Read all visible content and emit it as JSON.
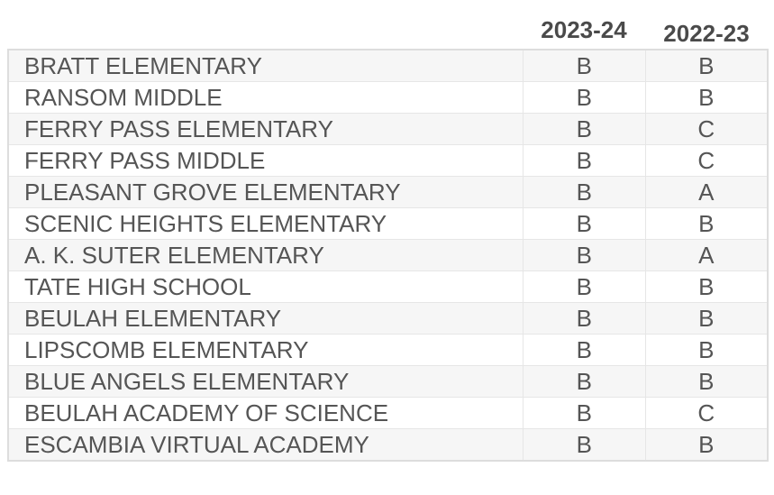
{
  "headers": [
    "2023-24",
    "2022-23"
  ],
  "rows": [
    {
      "school": "BRATT ELEMENTARY",
      "g1": "B",
      "g2": "B"
    },
    {
      "school": "RANSOM MIDDLE",
      "g1": "B",
      "g2": "B"
    },
    {
      "school": "FERRY PASS ELEMENTARY",
      "g1": "B",
      "g2": "C"
    },
    {
      "school": "FERRY PASS MIDDLE",
      "g1": "B",
      "g2": "C"
    },
    {
      "school": "PLEASANT GROVE ELEMENTARY",
      "g1": "B",
      "g2": "A"
    },
    {
      "school": "SCENIC HEIGHTS ELEMENTARY",
      "g1": "B",
      "g2": "B"
    },
    {
      "school": "A. K. SUTER ELEMENTARY",
      "g1": "B",
      "g2": "A"
    },
    {
      "school": "TATE HIGH SCHOOL",
      "g1": "B",
      "g2": "B"
    },
    {
      "school": "BEULAH ELEMENTARY",
      "g1": "B",
      "g2": "B"
    },
    {
      "school": "LIPSCOMB ELEMENTARY",
      "g1": "B",
      "g2": "B"
    },
    {
      "school": "BLUE ANGELS ELEMENTARY",
      "g1": "B",
      "g2": "B"
    },
    {
      "school": "BEULAH ACADEMY OF SCIENCE",
      "g1": "B",
      "g2": "C"
    },
    {
      "school": "ESCAMBIA VIRTUAL ACADEMY",
      "g1": "B",
      "g2": "B"
    }
  ]
}
